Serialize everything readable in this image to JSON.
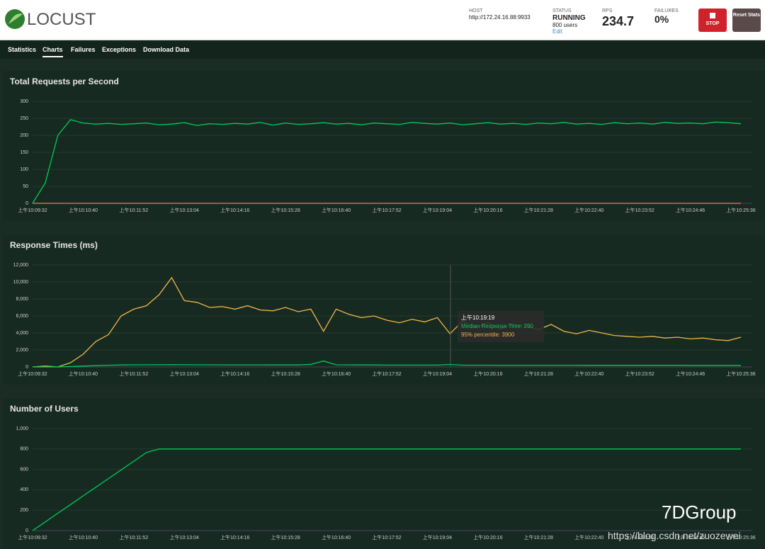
{
  "header": {
    "logo": "LOCUST",
    "host_label": "HOST",
    "host": "http://172.24.16.88:9933",
    "status_label": "STATUS",
    "status": "RUNNING",
    "users": "800 users",
    "edit": "Edit",
    "rps_label": "RPS",
    "rps": "234.7",
    "failures_label": "FAILURES",
    "failures": "0%",
    "stop": "STOP",
    "reset": "Reset Stats"
  },
  "tabs": [
    "Statistics",
    "Charts",
    "Failures",
    "Exceptions",
    "Download Data"
  ],
  "watermark": {
    "brand": "7DGroup",
    "url": "https://blog.csdn.net/zuozewei"
  },
  "chart_data": [
    {
      "type": "line",
      "title": "Total Requests per Second",
      "categories": [
        "上午10:09:32",
        null,
        null,
        null,
        "上午10:10:40",
        null,
        null,
        null,
        "上午10:11:52",
        null,
        null,
        null,
        "上午10:13:04",
        null,
        null,
        null,
        "上午10:14:16",
        null,
        null,
        null,
        "上午10:15:28",
        null,
        null,
        null,
        "上午10:16:40",
        null,
        null,
        null,
        "上午10:17:52",
        null,
        null,
        null,
        "上午10:19:04",
        null,
        null,
        null,
        "上午10:20:16",
        null,
        null,
        null,
        "上午10:21:28",
        null,
        null,
        null,
        "上午10:22:40",
        null,
        null,
        null,
        "上午10:23:52",
        null,
        null,
        null,
        "上午10:24:46",
        null,
        null,
        null,
        "上午10:25:36"
      ],
      "ylim": [
        0,
        300
      ],
      "yticks": [
        0,
        50,
        100,
        150,
        200,
        250,
        300
      ],
      "grid": true,
      "series": [
        {
          "color": "#00ca5a",
          "values": [
            0,
            60,
            200,
            246,
            236,
            233,
            235,
            232,
            234,
            236,
            231,
            233,
            237,
            229,
            234,
            232,
            235,
            233,
            238,
            230,
            236,
            232,
            234,
            237,
            233,
            235,
            231,
            236,
            234,
            232,
            238,
            235,
            233,
            236,
            231,
            234,
            237,
            233,
            235,
            232,
            236,
            234,
            238,
            233,
            235,
            232,
            237,
            234,
            236,
            233,
            238,
            235,
            236,
            234,
            239,
            237,
            234
          ]
        },
        {
          "color": "#ff6d6d",
          "values": [
            0,
            0,
            0,
            0,
            0,
            0,
            0,
            0,
            0,
            0,
            0,
            0,
            0,
            0,
            0,
            0,
            0,
            0,
            0,
            0,
            0,
            0,
            0,
            0,
            0,
            0,
            0,
            0,
            0,
            0,
            0,
            0,
            0,
            0,
            0,
            0,
            0,
            0,
            0,
            0,
            0,
            0,
            0,
            0,
            0,
            0,
            0,
            0,
            0,
            0,
            0,
            0,
            0,
            0,
            0,
            0,
            0
          ]
        }
      ]
    },
    {
      "type": "line",
      "title": "Response Times (ms)",
      "categories": [
        "上午10:09:32",
        null,
        null,
        null,
        "上午10:10:40",
        null,
        null,
        null,
        "上午10:11:52",
        null,
        null,
        null,
        "上午10:13:04",
        null,
        null,
        null,
        "上午10:14:16",
        null,
        null,
        null,
        "上午10:15:28",
        null,
        null,
        null,
        "上午10:16:40",
        null,
        null,
        null,
        "上午10:17:52",
        null,
        null,
        null,
        "上午10:19:04",
        null,
        null,
        null,
        "上午10:20:16",
        null,
        null,
        null,
        "上午10:21:28",
        null,
        null,
        null,
        "上午10:22:40",
        null,
        null,
        null,
        "上午10:23:52",
        null,
        null,
        null,
        "上午10:24:46",
        null,
        null,
        null,
        "上午10:25:36"
      ],
      "ylim": [
        0,
        12000
      ],
      "yticks": [
        0,
        {
          "value": 2000,
          "label": "2,000"
        },
        {
          "value": 4000,
          "label": "4,000"
        },
        {
          "value": 6000,
          "label": "6,000"
        },
        {
          "value": 8000,
          "label": "8,000"
        },
        {
          "value": 10000,
          "label": "10,000"
        },
        {
          "value": 12000,
          "label": "12,000"
        }
      ],
      "grid": true,
      "series": [
        {
          "color": "#eeb54b",
          "values": [
            0,
            100,
            0,
            500,
            1500,
            3000,
            3800,
            6000,
            6800,
            7200,
            8500,
            10500,
            7800,
            7600,
            7000,
            7100,
            6800,
            7200,
            6700,
            6600,
            7000,
            6500,
            6800,
            4200,
            6800,
            6200,
            5800,
            6000,
            5500,
            5200,
            5600,
            5300,
            5800,
            3900,
            5400,
            4600,
            5200,
            4500,
            5000,
            4800,
            4400,
            5000,
            4200,
            3900,
            4300,
            4000,
            3700,
            3600,
            3500,
            3600,
            3400,
            3500,
            3300,
            3400,
            3200,
            3100,
            3500
          ]
        },
        {
          "color": "#00ca5a",
          "values": [
            0,
            0,
            0,
            50,
            100,
            150,
            200,
            230,
            250,
            250,
            260,
            270,
            260,
            250,
            250,
            240,
            240,
            240,
            240,
            230,
            230,
            230,
            300,
            700,
            250,
            240,
            230,
            230,
            220,
            220,
            220,
            220,
            220,
            290,
            210,
            210,
            210,
            200,
            200,
            200,
            200,
            200,
            200,
            200,
            190,
            190,
            190,
            190,
            190,
            190,
            190,
            190,
            180,
            180,
            180,
            180,
            180
          ]
        }
      ],
      "tooltip": {
        "time": "上午10:19:19",
        "lines": [
          "Median Response Time: 290",
          "95% percentile: 3900"
        ]
      }
    },
    {
      "type": "line",
      "title": "Number of Users",
      "categories": [
        "上午10:09:32",
        null,
        null,
        null,
        "上午10:10:40",
        null,
        null,
        null,
        "上午10:11:52",
        null,
        null,
        null,
        "上午10:13:04",
        null,
        null,
        null,
        "上午10:14:16",
        null,
        null,
        null,
        "上午10:15:28",
        null,
        null,
        null,
        "上午10:16:40",
        null,
        null,
        null,
        "上午10:17:52",
        null,
        null,
        null,
        "上午10:19:04",
        null,
        null,
        null,
        "上午10:20:16",
        null,
        null,
        null,
        "上午10:21:28",
        null,
        null,
        null,
        "上午10:22:40",
        null,
        null,
        null,
        "上午10:23:52",
        null,
        null,
        null,
        "上午10:24:46",
        null,
        null,
        null,
        "上午10:25:36"
      ],
      "ylim": [
        0,
        1000
      ],
      "yticks": [
        0,
        200,
        400,
        600,
        800,
        {
          "value": 1000,
          "label": "1,000"
        }
      ],
      "grid": true,
      "series": [
        {
          "color": "#00ca5a",
          "values": [
            0,
            85,
            170,
            255,
            340,
            425,
            510,
            595,
            680,
            765,
            800,
            800,
            800,
            800,
            800,
            800,
            800,
            800,
            800,
            800,
            800,
            800,
            800,
            800,
            800,
            800,
            800,
            800,
            800,
            800,
            800,
            800,
            800,
            800,
            800,
            800,
            800,
            800,
            800,
            800,
            800,
            800,
            800,
            800,
            800,
            800,
            800,
            800,
            800,
            800,
            800,
            800,
            800,
            800,
            800,
            800,
            800
          ]
        }
      ]
    }
  ]
}
